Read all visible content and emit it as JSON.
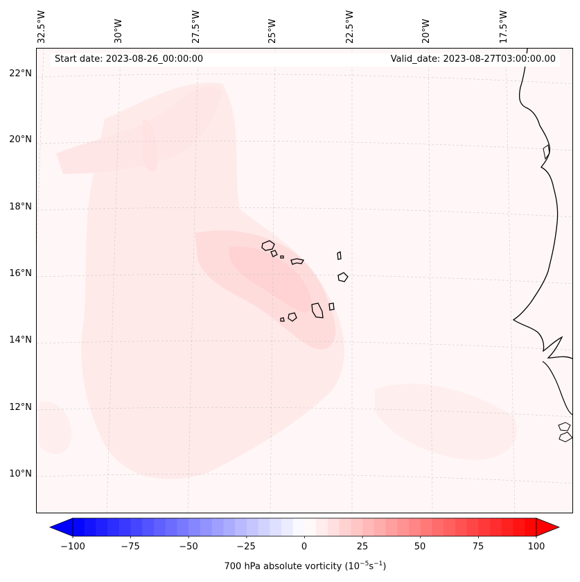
{
  "map": {
    "start_date": "Start date: 2023-08-26_00:00:00",
    "valid_date": "Valid_date: 2023-08-27T03:00:00.00",
    "longitude_labels": [
      "32.5°W",
      "30°W",
      "27.5°W",
      "25°W",
      "22.5°W",
      "20°W",
      "17.5°W"
    ],
    "latitude_labels": [
      "22°N",
      "20°N",
      "18°N",
      "16°N",
      "14°N",
      "12°N",
      "10°N"
    ],
    "extent": {
      "lon_min": -32.6,
      "lon_max": -16.0,
      "lat_min": 8.9,
      "lat_max": 22.7
    },
    "field": "700 hPa absolute vorticity",
    "features": [
      "coastline-west-africa",
      "cape-verde-islands",
      "vorticity-contours",
      "gridlines"
    ]
  },
  "colorbar": {
    "ticks": [
      "−100",
      "−75",
      "−50",
      "−25",
      "0",
      "25",
      "50",
      "75",
      "100"
    ],
    "tick_values": [
      -100,
      -75,
      -50,
      -25,
      0,
      25,
      50,
      75,
      100
    ],
    "range": [
      -100,
      100
    ],
    "colormap": "bwr",
    "label_prefix": "700 hPa absolute vorticity (10",
    "label_exp1": "−5",
    "label_mid": "s",
    "label_exp2": "−1",
    "label_suffix": ")",
    "colors": {
      "negative": "#0000ff",
      "zero": "#ffffff",
      "positive": "#ff0000"
    }
  }
}
